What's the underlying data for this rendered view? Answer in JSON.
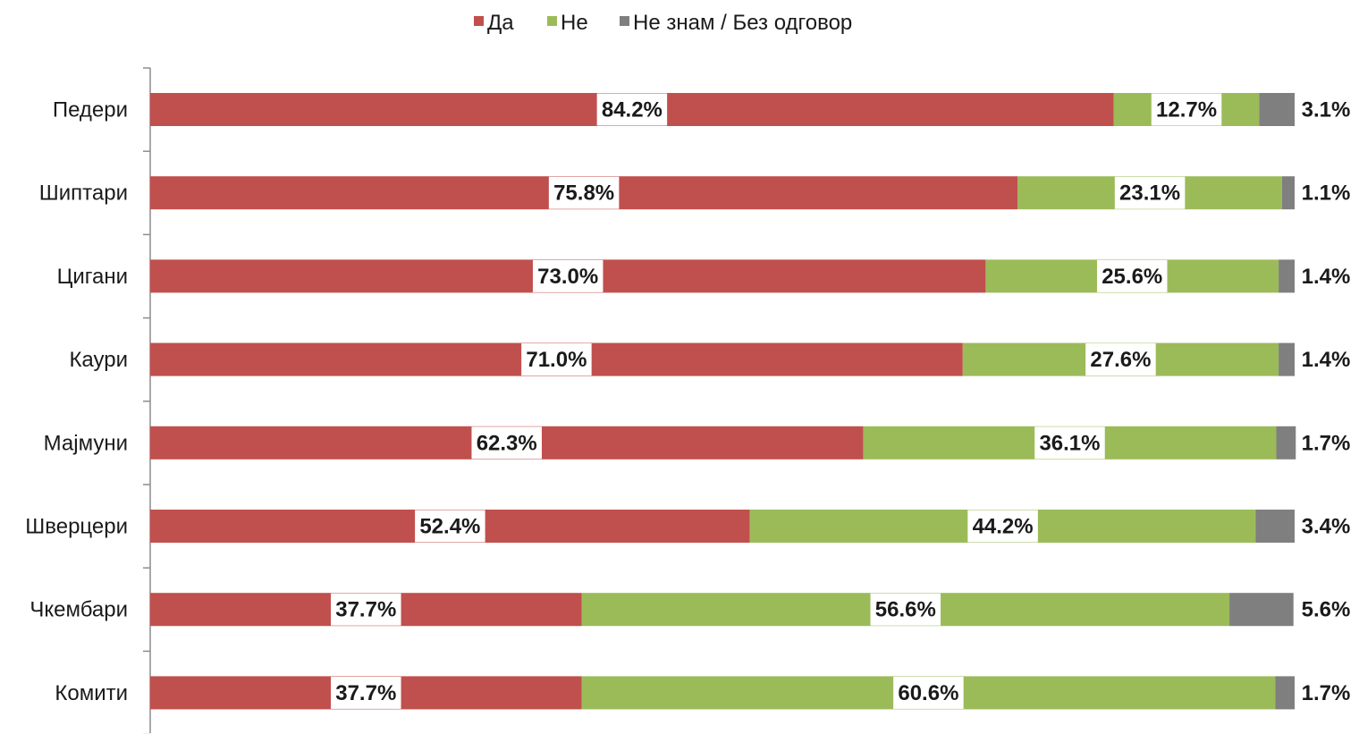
{
  "chart_data": {
    "type": "bar",
    "orientation": "horizontal",
    "stacked": true,
    "categories": [
      "Педери",
      "Шиптари",
      "Цигани",
      "Каури",
      "Мајмуни",
      "Шверцери",
      "Чкембари",
      "Комити"
    ],
    "series": [
      {
        "name": "Да",
        "color": "#c0504d",
        "values": [
          84.2,
          75.8,
          73.0,
          71.0,
          62.3,
          52.4,
          37.7,
          37.7
        ],
        "labels": [
          "84.2%",
          "75.8%",
          "73.0%",
          "71.0%",
          "62.3%",
          "52.4%",
          "37.7%",
          "37.7%"
        ]
      },
      {
        "name": "Не",
        "color": "#9bbb59",
        "values": [
          12.7,
          23.1,
          25.6,
          27.6,
          36.1,
          44.2,
          56.6,
          60.6
        ],
        "labels": [
          "12.7%",
          "23.1%",
          "25.6%",
          "27.6%",
          "36.1%",
          "44.2%",
          "56.6%",
          "60.6%"
        ]
      },
      {
        "name": "Не знам / Без одговор",
        "color": "#7f7f7f",
        "values": [
          3.1,
          1.1,
          1.4,
          1.4,
          1.7,
          3.4,
          5.6,
          1.7
        ],
        "labels": [
          "3.1%",
          "1.1%",
          "1.4%",
          "1.4%",
          "1.7%",
          "3.4%",
          "5.6%",
          "1.7%"
        ]
      }
    ],
    "xlim": [
      0,
      100
    ],
    "grid": false,
    "legend": "top-center"
  }
}
